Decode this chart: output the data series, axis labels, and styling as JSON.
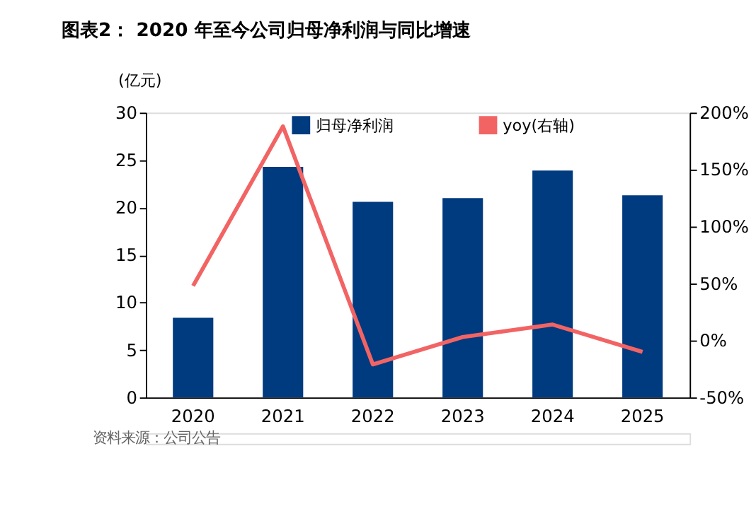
{
  "chart_data": {
    "type": "bar",
    "title": "图表2：  2020 年至今公司归母净利润与同比增速",
    "ylabel": "(亿元)",
    "categories": [
      "2020",
      "2021",
      "2022",
      "2023",
      "2024",
      "2025"
    ],
    "series": [
      {
        "name": "归母净利润",
        "color": "#003a7f",
        "values": [
          8.4,
          24.3,
          20.6,
          21.0,
          23.9,
          21.3
        ]
      },
      {
        "name": "yoy(右轴)",
        "type": "line",
        "color": "#f26464",
        "axis": "y2",
        "values": [
          48,
          188,
          -21,
          3,
          14,
          -10
        ]
      }
    ],
    "ylim": [
      0,
      30
    ],
    "yticks": [
      0,
      5,
      10,
      15,
      20,
      25,
      30
    ],
    "y2lim": [
      -50,
      200
    ],
    "y2ticks": [
      {
        "value": -50,
        "label": "-50%"
      },
      {
        "value": 0,
        "label": "0%"
      },
      {
        "value": 50,
        "label": "50%"
      },
      {
        "value": 100,
        "label": "100%"
      },
      {
        "value": 150,
        "label": "150%"
      },
      {
        "value": 200,
        "label": "200%"
      }
    ],
    "legend": "top",
    "grid": false,
    "annotations": [
      "资料来源：公司公告"
    ]
  }
}
